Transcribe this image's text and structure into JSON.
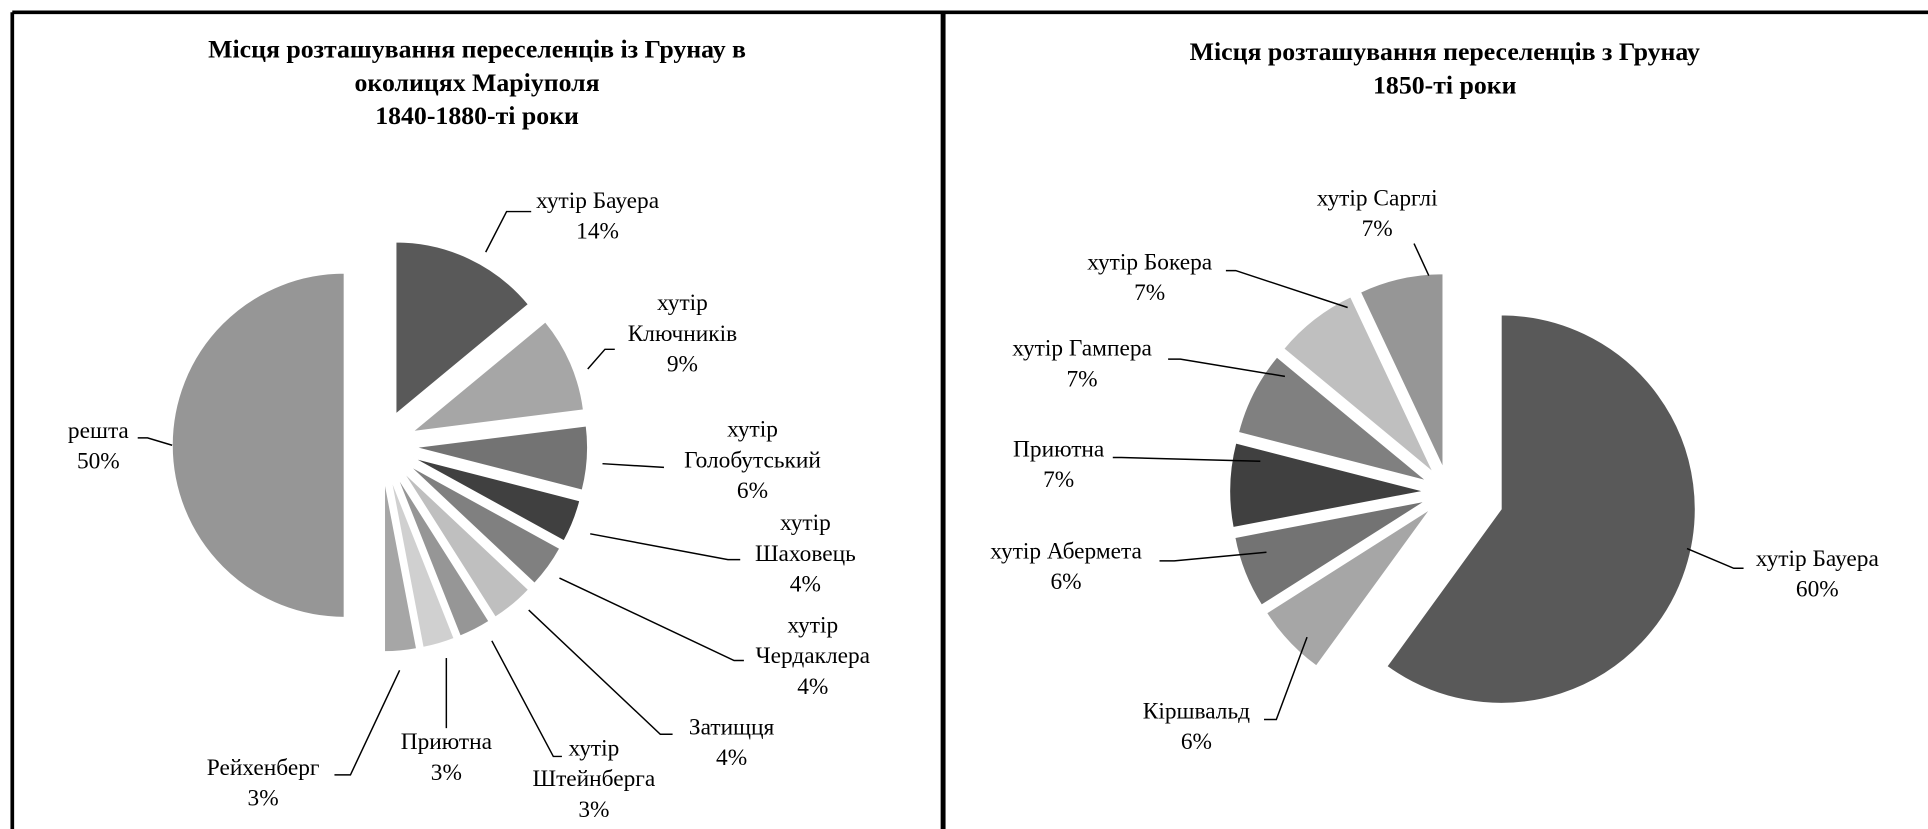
{
  "chart_data": [
    {
      "type": "pie",
      "title": "Місця розташування переселенців із Грунау в\nоколицях Маріуполя\n1840-1880-ті роки",
      "categories": [
        "хутір Бауера",
        "хутір\nКлючників",
        "хутір\nГолобутський",
        "хутір\nШаховець",
        "хутір\nЧердаклера",
        "Затищця",
        "хутір\nШтейнберга",
        "Приютна",
        "Рейхенберг",
        "решта"
      ],
      "values": [
        14,
        9,
        6,
        4,
        4,
        4,
        3,
        3,
        3,
        50
      ],
      "value_labels": [
        "14%",
        "9%",
        "6%",
        "4%",
        "4%",
        "4%",
        "3%",
        "3%",
        "3%",
        "50%"
      ],
      "colors": [
        "#595959",
        "#a6a6a6",
        "#737373",
        "#404040",
        "#808080",
        "#bfbfbf",
        "#969696",
        "#d0d0d0",
        "#a6a6a6",
        "#969696"
      ]
    },
    {
      "type": "pie",
      "title": "Місця розташування переселенців з Грунау\n1850-ті роки",
      "categories": [
        "хутір Бауера",
        "Кіршвальд",
        "хутір Абермета",
        "Приютна",
        "хутір Гампера",
        "хутір Бокера",
        "хутір Сарглі"
      ],
      "values": [
        60,
        6,
        6,
        7,
        7,
        7,
        7
      ],
      "value_labels": [
        "60%",
        "6%",
        "6%",
        "7%",
        "7%",
        "7%",
        "7%"
      ],
      "colors": [
        "#595959",
        "#a6a6a6",
        "#737373",
        "#404040",
        "#808080",
        "#bfbfbf",
        "#969696"
      ]
    }
  ]
}
